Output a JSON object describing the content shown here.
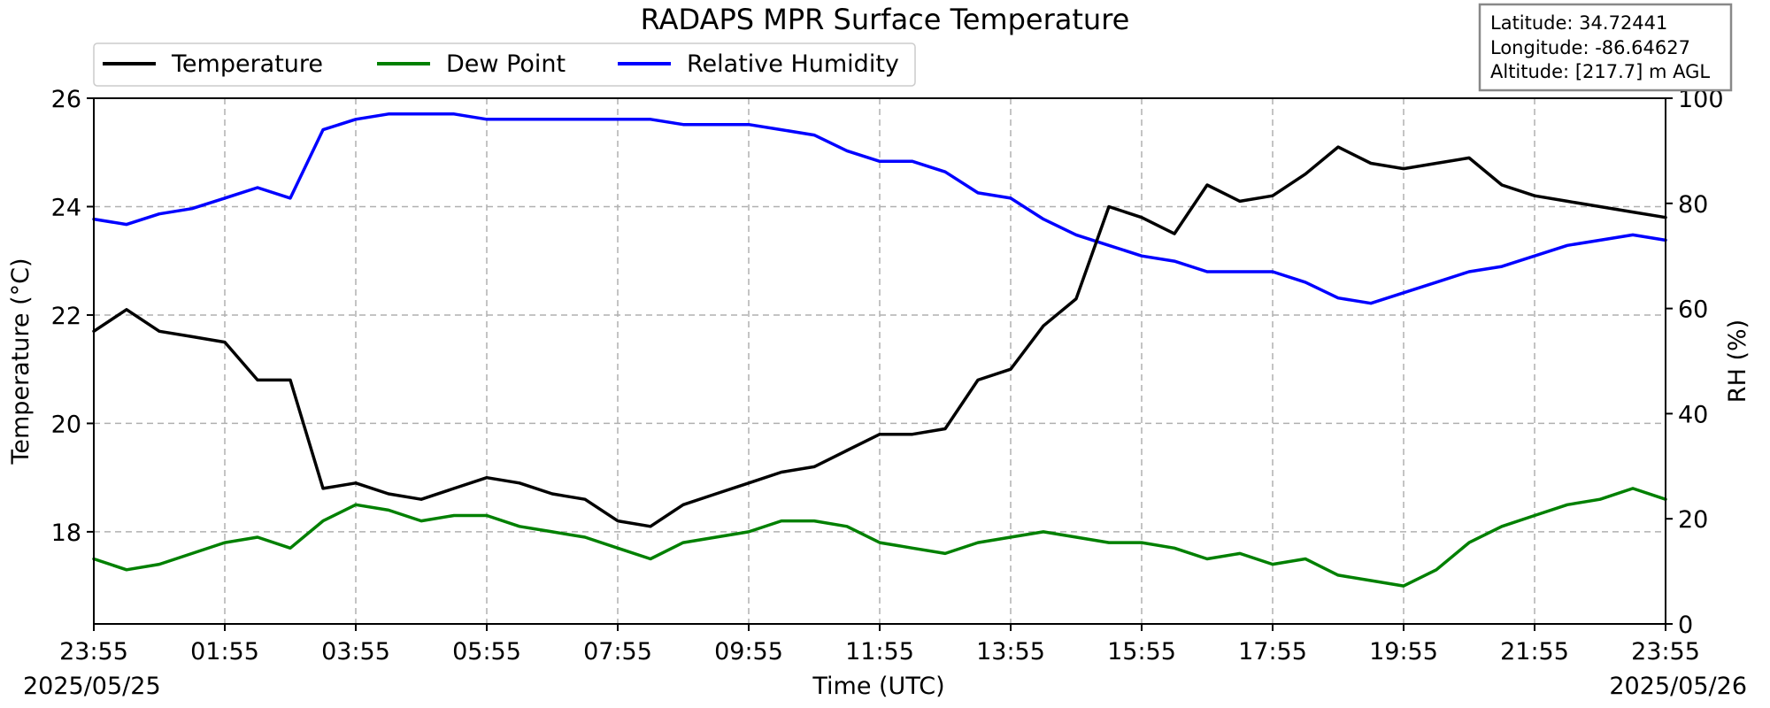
{
  "chart_data": {
    "type": "line",
    "title": "RADAPS MPR Surface Temperature",
    "xlabel": "Time (UTC)",
    "ylabel": "Temperature ($^\\circ$C)",
    "ylabel_display": "Temperature (°C)",
    "ylabel_right": "RH (%)",
    "ylim": [
      16.3,
      26
    ],
    "ylim_right": [
      0,
      100
    ],
    "yticks": [
      "26",
      "24",
      "22",
      "20",
      "18"
    ],
    "yticks_right": [
      "100",
      "80",
      "60",
      "40",
      "20",
      "0"
    ],
    "xticks": [
      "23:55",
      "01:55",
      "03:55",
      "05:55",
      "07:55",
      "09:55",
      "11:55",
      "13:55",
      "15:55",
      "17:55",
      "19:55",
      "21:55",
      "23:55"
    ],
    "start_date": "2025/05/25",
    "end_date": "2025/05/26",
    "grid": true,
    "legend_placement": "top-left",
    "x_hours": [
      0,
      0.5,
      1,
      1.5,
      2,
      2.5,
      3,
      3.5,
      4,
      4.5,
      5,
      5.5,
      6,
      6.5,
      7,
      7.5,
      8,
      8.5,
      9,
      9.5,
      10,
      10.5,
      11,
      11.5,
      12,
      12.5,
      13,
      13.5,
      14,
      14.5,
      15,
      15.5,
      16,
      16.5,
      17,
      17.5,
      18,
      18.5,
      19,
      19.5,
      20,
      20.5,
      21,
      21.5,
      22,
      22.5,
      23,
      23.5,
      24
    ],
    "series": [
      {
        "name": "Temperature",
        "color": "#000000",
        "axis": "left",
        "values": [
          21.7,
          22.1,
          21.7,
          21.6,
          21.5,
          20.8,
          20.8,
          18.8,
          18.9,
          18.7,
          18.6,
          18.8,
          19.0,
          18.9,
          18.7,
          18.6,
          18.2,
          18.1,
          18.5,
          18.7,
          18.9,
          19.1,
          19.2,
          19.5,
          19.8,
          19.8,
          19.9,
          20.8,
          21.0,
          21.8,
          22.3,
          24.0,
          23.8,
          23.5,
          24.4,
          24.1,
          24.2,
          24.6,
          25.1,
          24.8,
          24.7,
          24.8,
          24.9,
          24.4,
          24.2,
          24.1,
          24.0,
          23.9,
          23.8
        ]
      },
      {
        "name": "Dew Point",
        "color": "#008000",
        "axis": "left",
        "values": [
          17.5,
          17.3,
          17.4,
          17.6,
          17.8,
          17.9,
          17.7,
          18.2,
          18.5,
          18.4,
          18.2,
          18.3,
          18.3,
          18.1,
          18.0,
          17.9,
          17.7,
          17.5,
          17.8,
          17.9,
          18.0,
          18.2,
          18.2,
          18.1,
          17.8,
          17.7,
          17.6,
          17.8,
          17.9,
          18.0,
          17.9,
          17.8,
          17.8,
          17.7,
          17.5,
          17.6,
          17.4,
          17.5,
          17.2,
          17.1,
          17.0,
          17.3,
          17.8,
          18.1,
          18.3,
          18.5,
          18.6,
          18.8,
          18.6
        ]
      },
      {
        "name": "Relative Humidity",
        "color": "#0000ff",
        "axis": "right",
        "values": [
          77,
          76,
          78,
          79,
          81,
          83,
          81,
          94,
          96,
          97,
          97,
          97,
          96,
          96,
          96,
          96,
          96,
          96,
          95,
          95,
          95,
          94,
          93,
          90,
          88,
          88,
          86,
          82,
          81,
          77,
          74,
          72,
          70,
          69,
          67,
          67,
          67,
          65,
          62,
          61,
          63,
          65,
          67,
          68,
          70,
          72,
          73,
          74,
          73
        ]
      }
    ]
  },
  "info_box": {
    "latitude": "Latitude: 34.72441",
    "longitude": "Longitude: -86.64627",
    "altitude": "Altitude: [217.7] m AGL"
  }
}
